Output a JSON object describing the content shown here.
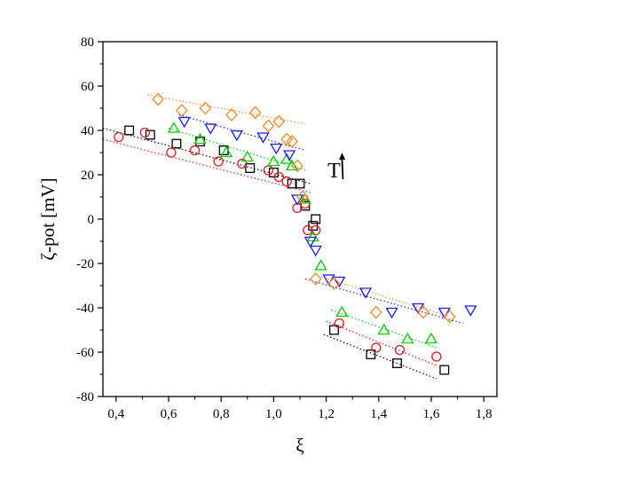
{
  "chart_data": {
    "type": "scatter",
    "title": "",
    "xlabel": "ξ",
    "ylabel": "ζ-pot [mV]",
    "xlim": [
      0.35,
      1.85
    ],
    "ylim": [
      -80,
      80
    ],
    "x_ticks": [
      0.4,
      0.6,
      0.8,
      1.0,
      1.2,
      1.4,
      1.6,
      1.8
    ],
    "y_ticks": [
      -80,
      -60,
      -40,
      -20,
      0,
      20,
      40,
      60,
      80
    ],
    "x_tick_labels": [
      "0,4",
      "0,6",
      "0,8",
      "1,0",
      "1,2",
      "1,4",
      "1,6",
      "1,8"
    ],
    "y_tick_labels": [
      "-80",
      "-60",
      "-40",
      "-20",
      "0",
      "20",
      "40",
      "60",
      "80"
    ],
    "grid": false,
    "legend": "none",
    "annotation": {
      "text": "T",
      "x": 1.23,
      "y": 22,
      "arrow_to": [
        1.26,
        30
      ]
    },
    "series": [
      {
        "marker": "square",
        "color": "#000000",
        "points": [
          [
            0.45,
            40
          ],
          [
            0.53,
            38
          ],
          [
            0.63,
            34
          ],
          [
            0.72,
            35
          ],
          [
            0.81,
            31
          ],
          [
            0.91,
            23
          ],
          [
            1.0,
            21
          ],
          [
            1.07,
            16
          ],
          [
            1.1,
            16
          ],
          [
            1.12,
            6
          ],
          [
            1.15,
            -3
          ],
          [
            1.16,
            0
          ],
          [
            1.23,
            -50
          ],
          [
            1.37,
            -61
          ],
          [
            1.47,
            -65
          ],
          [
            1.65,
            -68
          ]
        ],
        "fit_lines": [
          [
            [
              0.35,
              41
            ],
            [
              1.14,
              16
            ]
          ],
          [
            [
              1.19,
              -52
            ],
            [
              1.62,
              -72
            ]
          ]
        ]
      },
      {
        "marker": "circle",
        "color": "#e8141a",
        "points": [
          [
            0.41,
            37
          ],
          [
            0.51,
            39
          ],
          [
            0.61,
            30
          ],
          [
            0.7,
            31
          ],
          [
            0.79,
            26
          ],
          [
            0.88,
            25
          ],
          [
            0.98,
            22
          ],
          [
            1.02,
            19
          ],
          [
            1.05,
            17
          ],
          [
            1.09,
            5
          ],
          [
            1.12,
            7
          ],
          [
            1.13,
            -5
          ],
          [
            1.16,
            -5
          ],
          [
            1.25,
            -47
          ],
          [
            1.39,
            -58
          ],
          [
            1.48,
            -59
          ],
          [
            1.62,
            -62
          ]
        ],
        "fit_lines": [
          [
            [
              0.35,
              36
            ],
            [
              1.14,
              12
            ]
          ],
          [
            [
              1.2,
              -46
            ],
            [
              1.62,
              -66
            ]
          ]
        ]
      },
      {
        "marker": "triangle-up",
        "color": "#00d000",
        "points": [
          [
            0.62,
            41
          ],
          [
            0.72,
            36
          ],
          [
            0.82,
            30
          ],
          [
            0.9,
            28
          ],
          [
            1.0,
            26
          ],
          [
            1.05,
            27
          ],
          [
            1.07,
            24
          ],
          [
            1.12,
            9
          ],
          [
            1.15,
            -8
          ],
          [
            1.18,
            -21
          ],
          [
            1.26,
            -42
          ],
          [
            1.42,
            -50
          ],
          [
            1.51,
            -54
          ],
          [
            1.6,
            -54
          ]
        ],
        "fit_lines": [
          [
            [
              0.6,
              41
            ],
            [
              1.12,
              22
            ]
          ],
          [
            [
              1.22,
              -41
            ],
            [
              1.62,
              -58
            ]
          ]
        ]
      },
      {
        "marker": "triangle-down",
        "color": "#1a1aff",
        "points": [
          [
            0.66,
            44
          ],
          [
            0.76,
            41
          ],
          [
            0.86,
            38
          ],
          [
            0.96,
            37
          ],
          [
            1.01,
            32
          ],
          [
            1.06,
            29
          ],
          [
            1.09,
            9
          ],
          [
            1.14,
            -10
          ],
          [
            1.16,
            -14
          ],
          [
            1.21,
            -27
          ],
          [
            1.25,
            -28
          ],
          [
            1.35,
            -33
          ],
          [
            1.45,
            -42
          ],
          [
            1.55,
            -40
          ],
          [
            1.65,
            -42
          ],
          [
            1.75,
            -41
          ]
        ],
        "fit_lines": [
          [
            [
              0.64,
              47
            ],
            [
              1.12,
              31
            ]
          ],
          [
            [
              1.12,
              -27
            ],
            [
              1.72,
              -47
            ]
          ]
        ]
      },
      {
        "marker": "diamond",
        "color": "#f28c28",
        "points": [
          [
            0.56,
            54
          ],
          [
            0.65,
            49
          ],
          [
            0.74,
            50
          ],
          [
            0.84,
            47
          ],
          [
            0.93,
            48
          ],
          [
            0.98,
            42
          ],
          [
            1.02,
            44
          ],
          [
            1.05,
            36
          ],
          [
            1.07,
            35
          ],
          [
            1.09,
            24
          ],
          [
            1.11,
            10
          ],
          [
            1.16,
            -27
          ],
          [
            1.23,
            -29
          ],
          [
            1.39,
            -42
          ],
          [
            1.57,
            -42
          ],
          [
            1.67,
            -44
          ]
        ],
        "fit_lines": [
          [
            [
              0.52,
              56
            ],
            [
              1.12,
              43
            ]
          ],
          [
            [
              1.18,
              -26
            ],
            [
              1.67,
              -44
            ]
          ]
        ]
      }
    ]
  }
}
